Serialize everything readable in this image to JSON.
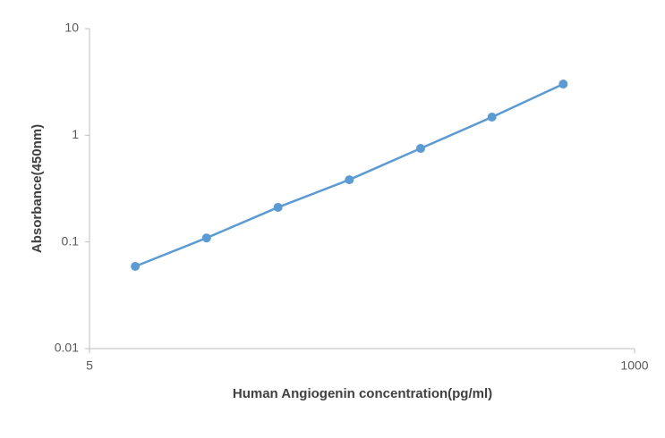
{
  "chart_data": {
    "type": "line",
    "x_label": "Human Angiogenin concentration(pg/ml)",
    "y_label": "Absorbance(450nm)",
    "x_scale": "log",
    "y_scale": "log",
    "xlim": [
      5,
      1000
    ],
    "xticks": [
      5,
      1000
    ],
    "ylim": [
      0.01,
      10
    ],
    "yticks": [
      0.01,
      0.1,
      1,
      10
    ],
    "series": [
      {
        "color": "#5b9bd5",
        "x": [
          7.8,
          15.6,
          31.25,
          62.5,
          125,
          250,
          500
        ],
        "values": [
          0.059,
          0.109,
          0.211,
          0.383,
          0.753,
          1.48,
          3.02
        ]
      }
    ]
  }
}
